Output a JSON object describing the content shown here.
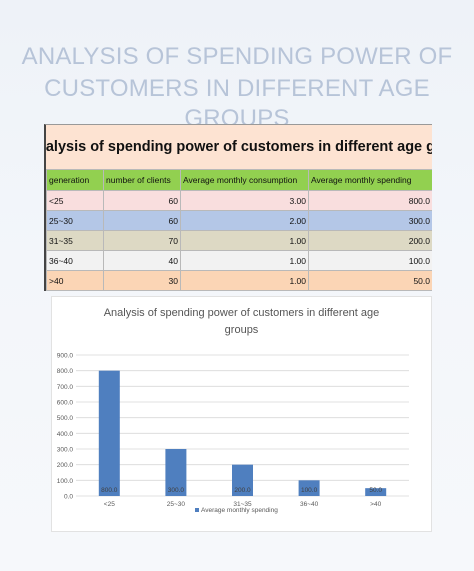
{
  "page": {
    "title_line1": "ANALYSIS OF SPENDING POWER OF",
    "title_line2": "CUSTOMERS IN DIFFERENT AGE GROUPS"
  },
  "sheet": {
    "title": "nalysis of spending power of customers in different age group",
    "headers": [
      "generation",
      "number of clients",
      "Average monthly consumption",
      "Average monthly spending"
    ],
    "rows": [
      [
        "<25",
        "60",
        "3.00",
        "800.0"
      ],
      [
        "25~30",
        "60",
        "2.00",
        "300.0"
      ],
      [
        "31~35",
        "70",
        "1.00",
        "200.0"
      ],
      [
        "36~40",
        "40",
        "1.00",
        "100.0"
      ],
      [
        ">40",
        "30",
        "1.00",
        "50.0"
      ]
    ]
  },
  "colors": {
    "bar": "#4f7fbf",
    "header_green": "#92d050",
    "title_peach": "#fde3d2"
  },
  "chart_data": {
    "type": "bar",
    "title_line1": "Analysis of spending power of customers in different age",
    "title_line2": "groups",
    "categories": [
      "<25",
      "25~30",
      "31~35",
      "36~40",
      ">40"
    ],
    "series": [
      {
        "name": "Average monthly spending",
        "values": [
          800,
          300,
          200,
          100,
          50
        ]
      }
    ],
    "data_labels": [
      "800.0",
      "300.0",
      "200.0",
      "100.0",
      "50.0"
    ],
    "y_ticks": [
      "900.0",
      "800.0",
      "700.0",
      "600.0",
      "500.0",
      "400.0",
      "300.0",
      "200.0",
      "100.0",
      "0.0"
    ],
    "ylim": [
      0,
      900
    ],
    "grid": true,
    "legend_position": "bottom"
  }
}
